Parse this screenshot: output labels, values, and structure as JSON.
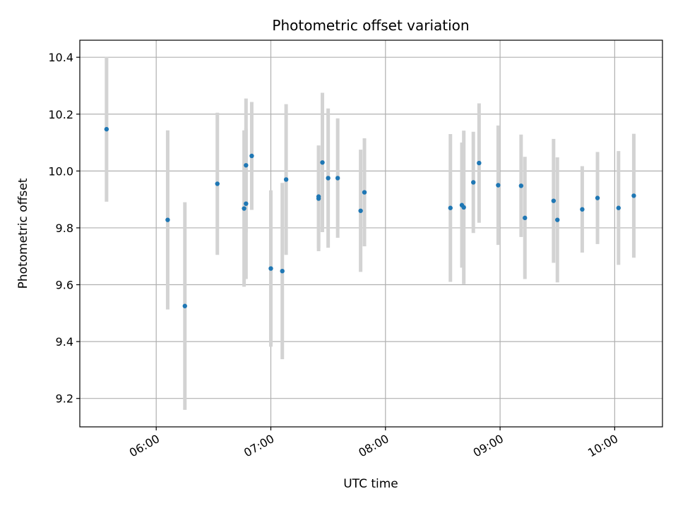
{
  "chart_data": {
    "type": "scatter",
    "title": "Photometric offset variation",
    "xlabel": "UTC time",
    "ylabel": "Photometric offset",
    "x_axis_kind": "time",
    "xlim": [
      "05:20",
      "10:25"
    ],
    "ylim": [
      9.1,
      10.46
    ],
    "xticks": [
      "06:00",
      "07:00",
      "08:00",
      "09:00",
      "10:00"
    ],
    "yticks": [
      9.2,
      9.4,
      9.6,
      9.8,
      10.0,
      10.2,
      10.4
    ],
    "grid": true,
    "point_color": "#1f77b4",
    "errorbar_color": "#d3d3d3",
    "points": [
      {
        "x": "05:34",
        "y": 10.147,
        "err": 0.255
      },
      {
        "x": "06:06",
        "y": 9.828,
        "err": 0.315
      },
      {
        "x": "06:15",
        "y": 9.525,
        "err": 0.365
      },
      {
        "x": "06:32",
        "y": 9.955,
        "err": 0.25
      },
      {
        "x": "06:46",
        "y": 9.868,
        "err": 0.275
      },
      {
        "x": "06:47",
        "y": 9.885,
        "err": 0.265
      },
      {
        "x": "06:47",
        "y": 10.02,
        "err": 0.235
      },
      {
        "x": "06:50",
        "y": 10.053,
        "err": 0.19
      },
      {
        "x": "07:00",
        "y": 9.657,
        "err": 0.275
      },
      {
        "x": "07:06",
        "y": 9.648,
        "err": 0.31
      },
      {
        "x": "07:08",
        "y": 9.97,
        "err": 0.265
      },
      {
        "x": "07:25",
        "y": 9.903,
        "err": 0.185
      },
      {
        "x": "07:25",
        "y": 9.91,
        "err": 0.18
      },
      {
        "x": "07:27",
        "y": 10.03,
        "err": 0.245
      },
      {
        "x": "07:30",
        "y": 9.975,
        "err": 0.245
      },
      {
        "x": "07:35",
        "y": 9.975,
        "err": 0.21
      },
      {
        "x": "07:47",
        "y": 9.86,
        "err": 0.215
      },
      {
        "x": "07:49",
        "y": 9.925,
        "err": 0.19
      },
      {
        "x": "08:34",
        "y": 9.87,
        "err": 0.26
      },
      {
        "x": "08:40",
        "y": 9.88,
        "err": 0.22
      },
      {
        "x": "08:41",
        "y": 9.872,
        "err": 0.27
      },
      {
        "x": "08:46",
        "y": 9.96,
        "err": 0.178
      },
      {
        "x": "08:49",
        "y": 10.028,
        "err": 0.21
      },
      {
        "x": "08:59",
        "y": 9.95,
        "err": 0.21
      },
      {
        "x": "09:11",
        "y": 9.948,
        "err": 0.18
      },
      {
        "x": "09:13",
        "y": 9.835,
        "err": 0.215
      },
      {
        "x": "09:28",
        "y": 9.895,
        "err": 0.218
      },
      {
        "x": "09:30",
        "y": 9.828,
        "err": 0.22
      },
      {
        "x": "09:43",
        "y": 9.865,
        "err": 0.152
      },
      {
        "x": "09:51",
        "y": 9.905,
        "err": 0.162
      },
      {
        "x": "10:02",
        "y": 9.87,
        "err": 0.2
      },
      {
        "x": "10:10",
        "y": 9.913,
        "err": 0.218
      }
    ]
  }
}
